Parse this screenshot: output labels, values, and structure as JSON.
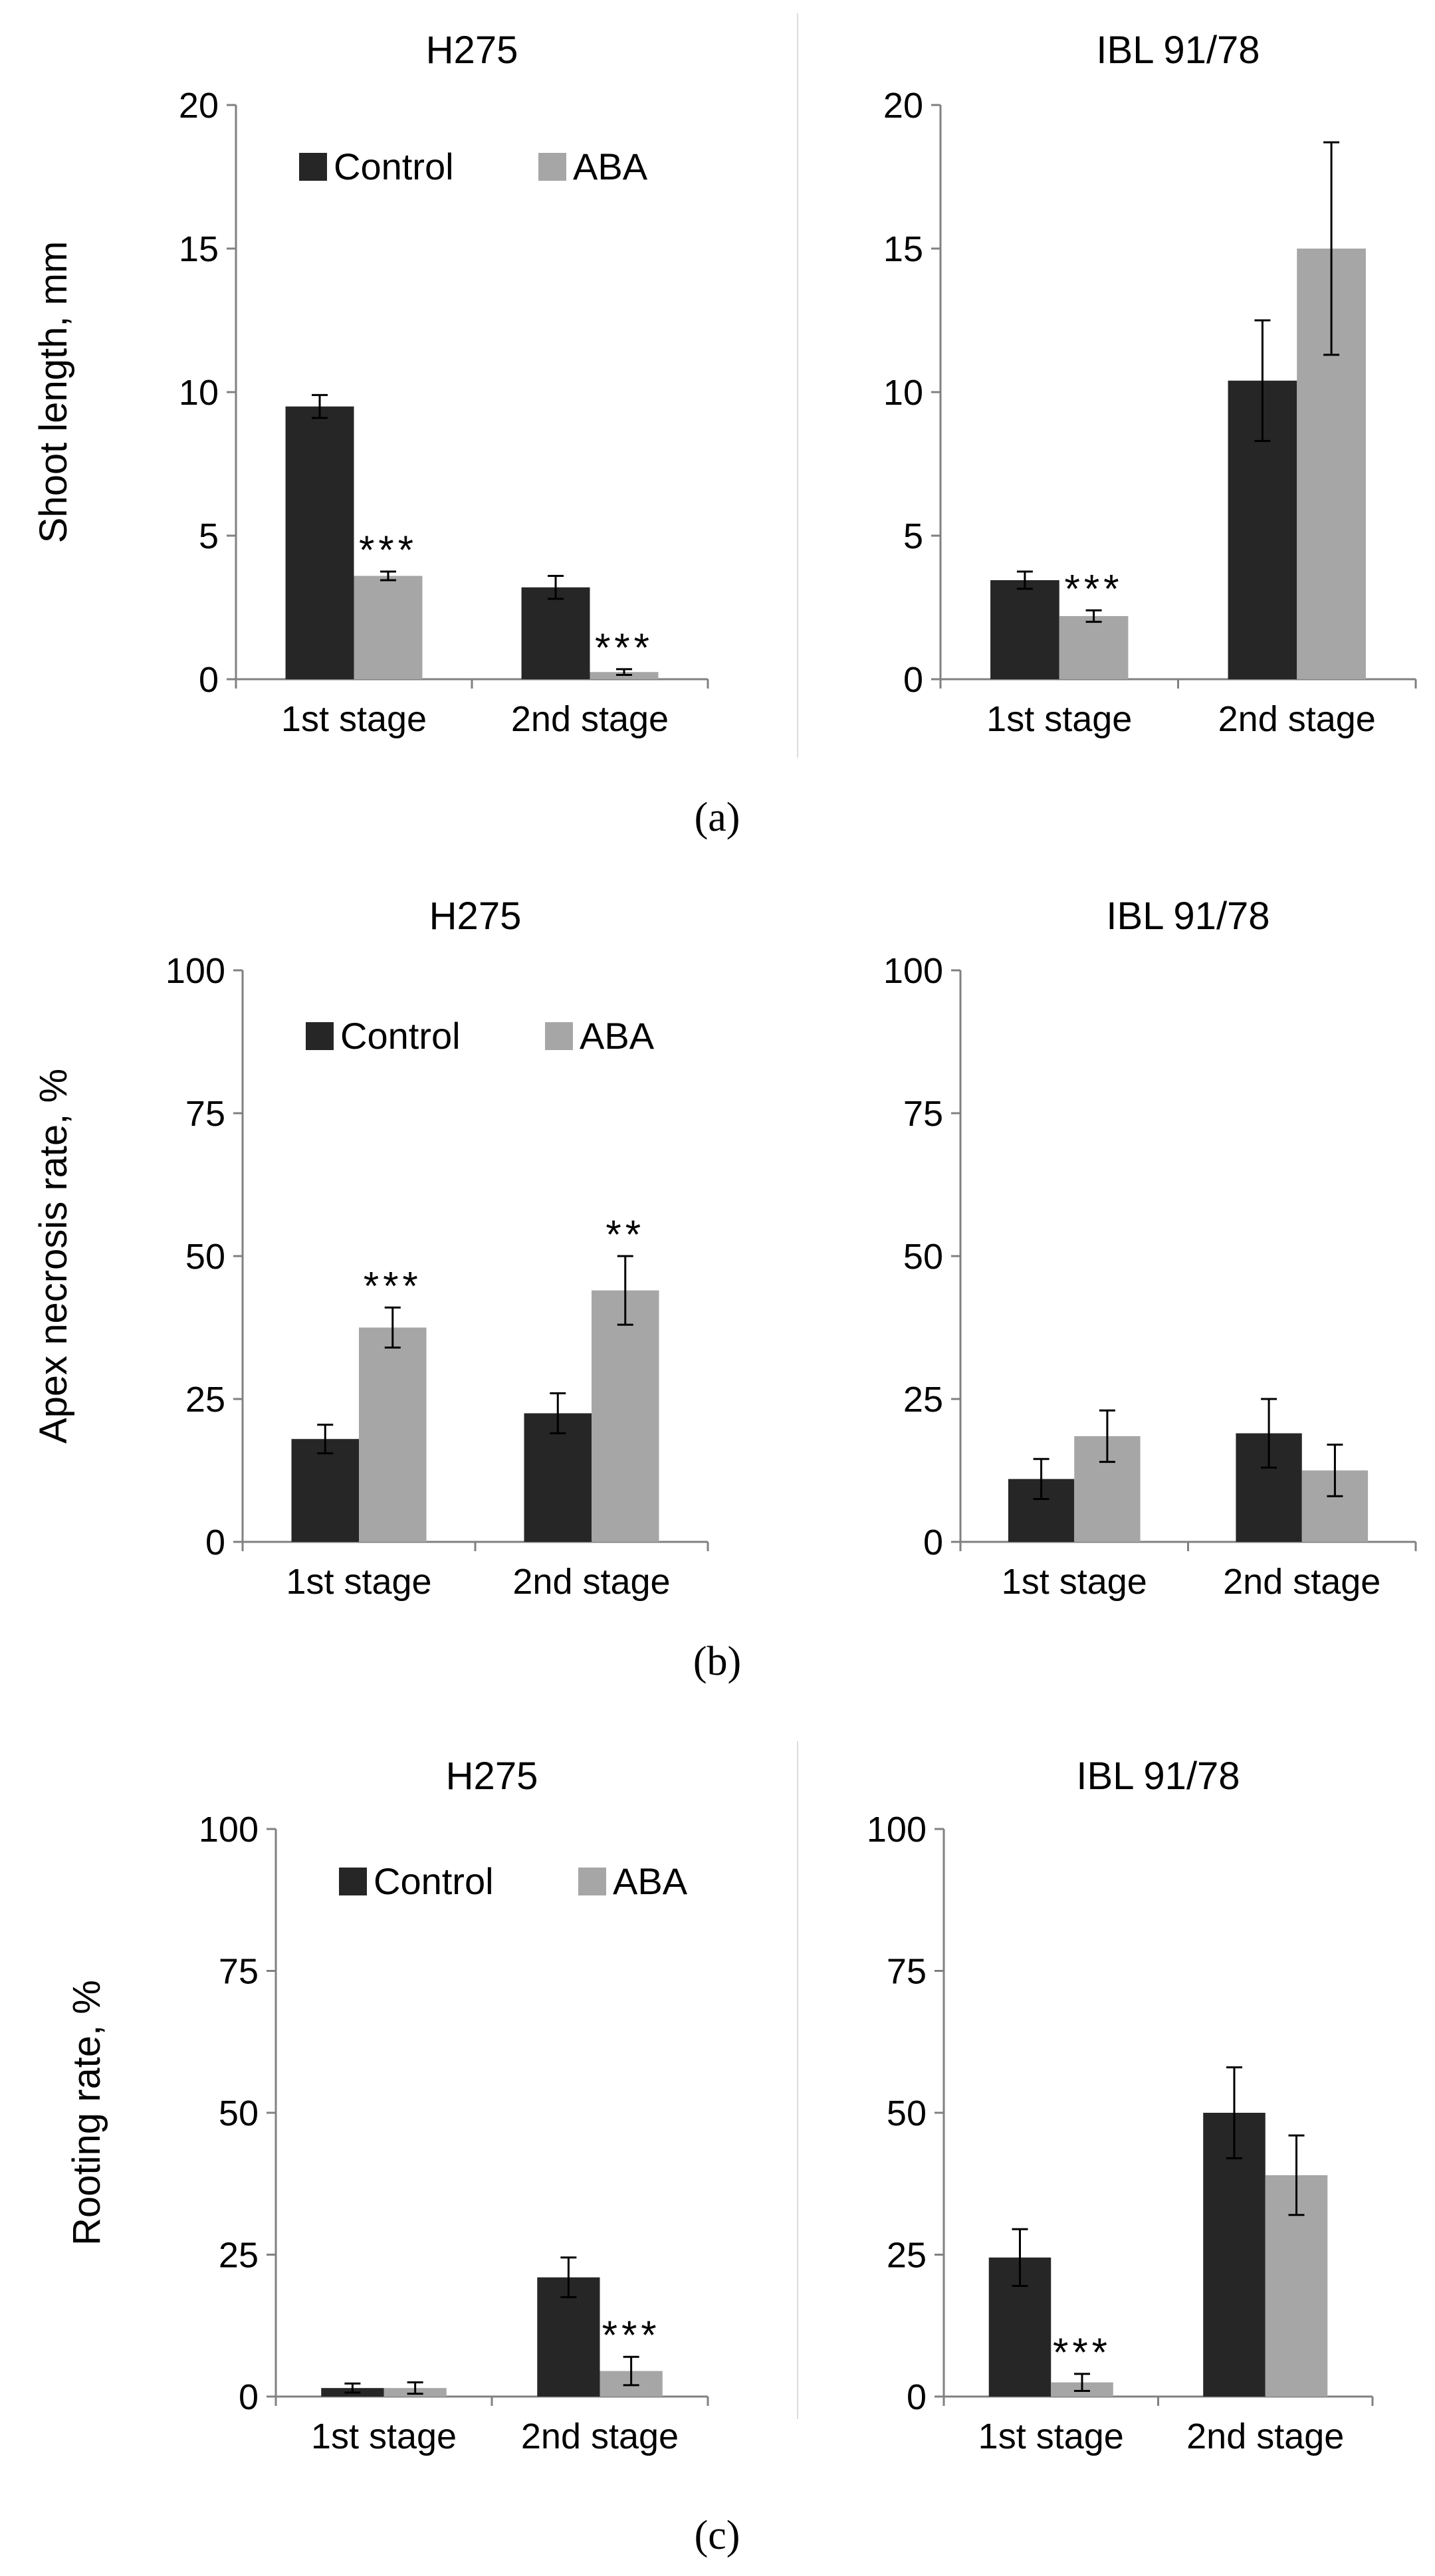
{
  "colors": {
    "control": "#262626",
    "aba": "#a6a6a6",
    "axis": "#808080",
    "divider": "#dddddd"
  },
  "chart_data": [
    {
      "panel": "a",
      "type": "bar",
      "title": "H275",
      "ylabel": "Shoot length, mm",
      "ylim": [
        0,
        20
      ],
      "yticks": [
        0,
        5,
        10,
        15,
        20
      ],
      "categories": [
        "1st stage",
        "2nd stage"
      ],
      "series": [
        {
          "name": "Control",
          "values": [
            9.5,
            3.2
          ],
          "errors": [
            0.4,
            0.4
          ]
        },
        {
          "name": "ABA",
          "values": [
            3.6,
            0.25
          ],
          "errors": [
            0.15,
            0.1
          ]
        }
      ],
      "annotations": [
        {
          "series": "ABA",
          "category": "1st stage",
          "text": "***"
        },
        {
          "series": "ABA",
          "category": "2nd stage",
          "text": "***"
        }
      ],
      "legend": [
        "Control",
        "ABA"
      ],
      "legend_position": "top"
    },
    {
      "panel": "a",
      "type": "bar",
      "title": "IBL 91/78",
      "ylabel": "",
      "ylim": [
        0,
        20
      ],
      "yticks": [
        0,
        5,
        10,
        15,
        20
      ],
      "categories": [
        "1st stage",
        "2nd stage"
      ],
      "series": [
        {
          "name": "Control",
          "values": [
            3.45,
            10.4
          ],
          "errors": [
            0.3,
            2.1
          ]
        },
        {
          "name": "ABA",
          "values": [
            2.2,
            15.0
          ],
          "errors": [
            0.2,
            3.7
          ]
        }
      ],
      "annotations": [
        {
          "series": "ABA",
          "category": "1st stage",
          "text": "***"
        }
      ]
    },
    {
      "panel": "b",
      "type": "bar",
      "title": "H275",
      "ylabel": "Apex necrosis rate, %",
      "ylim": [
        0,
        100
      ],
      "yticks": [
        0,
        25,
        50,
        75,
        100
      ],
      "categories": [
        "1st stage",
        "2nd stage"
      ],
      "series": [
        {
          "name": "Control",
          "values": [
            18,
            22.5
          ],
          "errors": [
            2.5,
            3.5
          ]
        },
        {
          "name": "ABA",
          "values": [
            37.5,
            44
          ],
          "errors": [
            3.5,
            6
          ]
        }
      ],
      "annotations": [
        {
          "series": "ABA",
          "category": "1st stage",
          "text": "***"
        },
        {
          "series": "ABA",
          "category": "2nd stage",
          "text": "**"
        }
      ],
      "legend": [
        "Control",
        "ABA"
      ],
      "legend_position": "top"
    },
    {
      "panel": "b",
      "type": "bar",
      "title": "IBL 91/78",
      "ylabel": "",
      "ylim": [
        0,
        100
      ],
      "yticks": [
        0,
        25,
        50,
        75,
        100
      ],
      "categories": [
        "1st stage",
        "2nd stage"
      ],
      "series": [
        {
          "name": "Control",
          "values": [
            11,
            19
          ],
          "errors": [
            3.5,
            6
          ]
        },
        {
          "name": "ABA",
          "values": [
            18.5,
            12.5
          ],
          "errors": [
            4.5,
            4.5
          ]
        }
      ],
      "annotations": []
    },
    {
      "panel": "c",
      "type": "bar",
      "title": "H275",
      "ylabel": "Rooting rate, %",
      "ylim": [
        0,
        100
      ],
      "yticks": [
        0,
        25,
        50,
        75,
        100
      ],
      "categories": [
        "1st stage",
        "2nd stage"
      ],
      "series": [
        {
          "name": "Control",
          "values": [
            1.5,
            21
          ],
          "errors": [
            0.8,
            3.5
          ]
        },
        {
          "name": "ABA",
          "values": [
            1.5,
            4.5
          ],
          "errors": [
            1,
            2.5
          ]
        }
      ],
      "annotations": [
        {
          "series": "ABA",
          "category": "2nd stage",
          "text": "***"
        }
      ],
      "legend": [
        "Control",
        "ABA"
      ],
      "legend_position": "top"
    },
    {
      "panel": "c",
      "type": "bar",
      "title": "IBL 91/78",
      "ylabel": "",
      "ylim": [
        0,
        100
      ],
      "yticks": [
        0,
        25,
        50,
        75,
        100
      ],
      "categories": [
        "1st stage",
        "2nd stage"
      ],
      "series": [
        {
          "name": "Control",
          "values": [
            24.5,
            50
          ],
          "errors": [
            5,
            8
          ]
        },
        {
          "name": "ABA",
          "values": [
            2.5,
            39
          ],
          "errors": [
            1.5,
            7
          ]
        }
      ],
      "annotations": [
        {
          "series": "ABA",
          "category": "1st stage",
          "text": "***"
        }
      ]
    }
  ],
  "captions": [
    "(a)",
    "(b)",
    "(c)"
  ]
}
